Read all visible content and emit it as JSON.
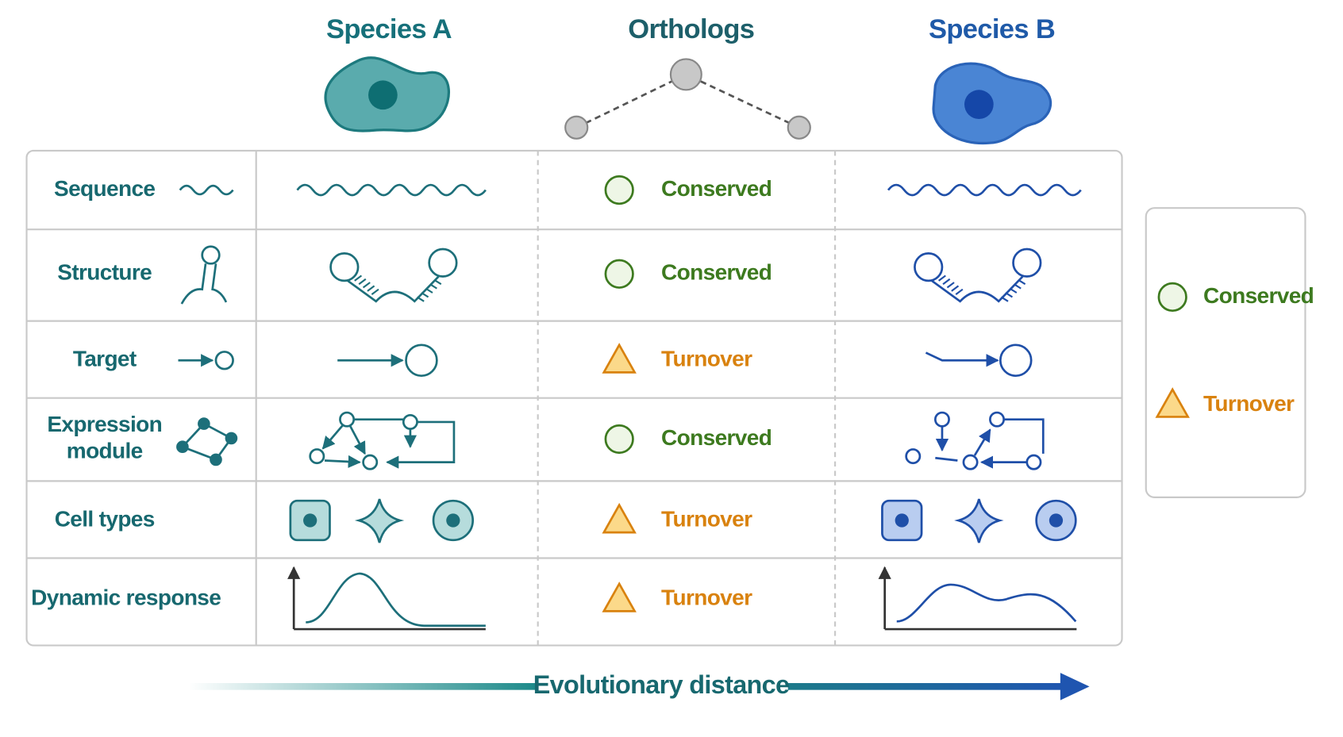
{
  "header": {
    "species_a": "Species A",
    "orthologs": "Orthologs",
    "species_b": "Species B"
  },
  "rows": [
    {
      "label": [
        "Sequence"
      ],
      "status": "Conserved"
    },
    {
      "label": [
        "Structure"
      ],
      "status": "Conserved"
    },
    {
      "label": [
        "Target"
      ],
      "status": "Turnover"
    },
    {
      "label": [
        "Expression",
        "module"
      ],
      "status": "Conserved"
    },
    {
      "label": [
        "Cell types"
      ],
      "status": "Turnover"
    },
    {
      "label": [
        "Dynamic response"
      ],
      "status": "Turnover"
    }
  ],
  "legend": [
    "Conserved",
    "Turnover"
  ],
  "footer": "Evolutionary distance"
}
